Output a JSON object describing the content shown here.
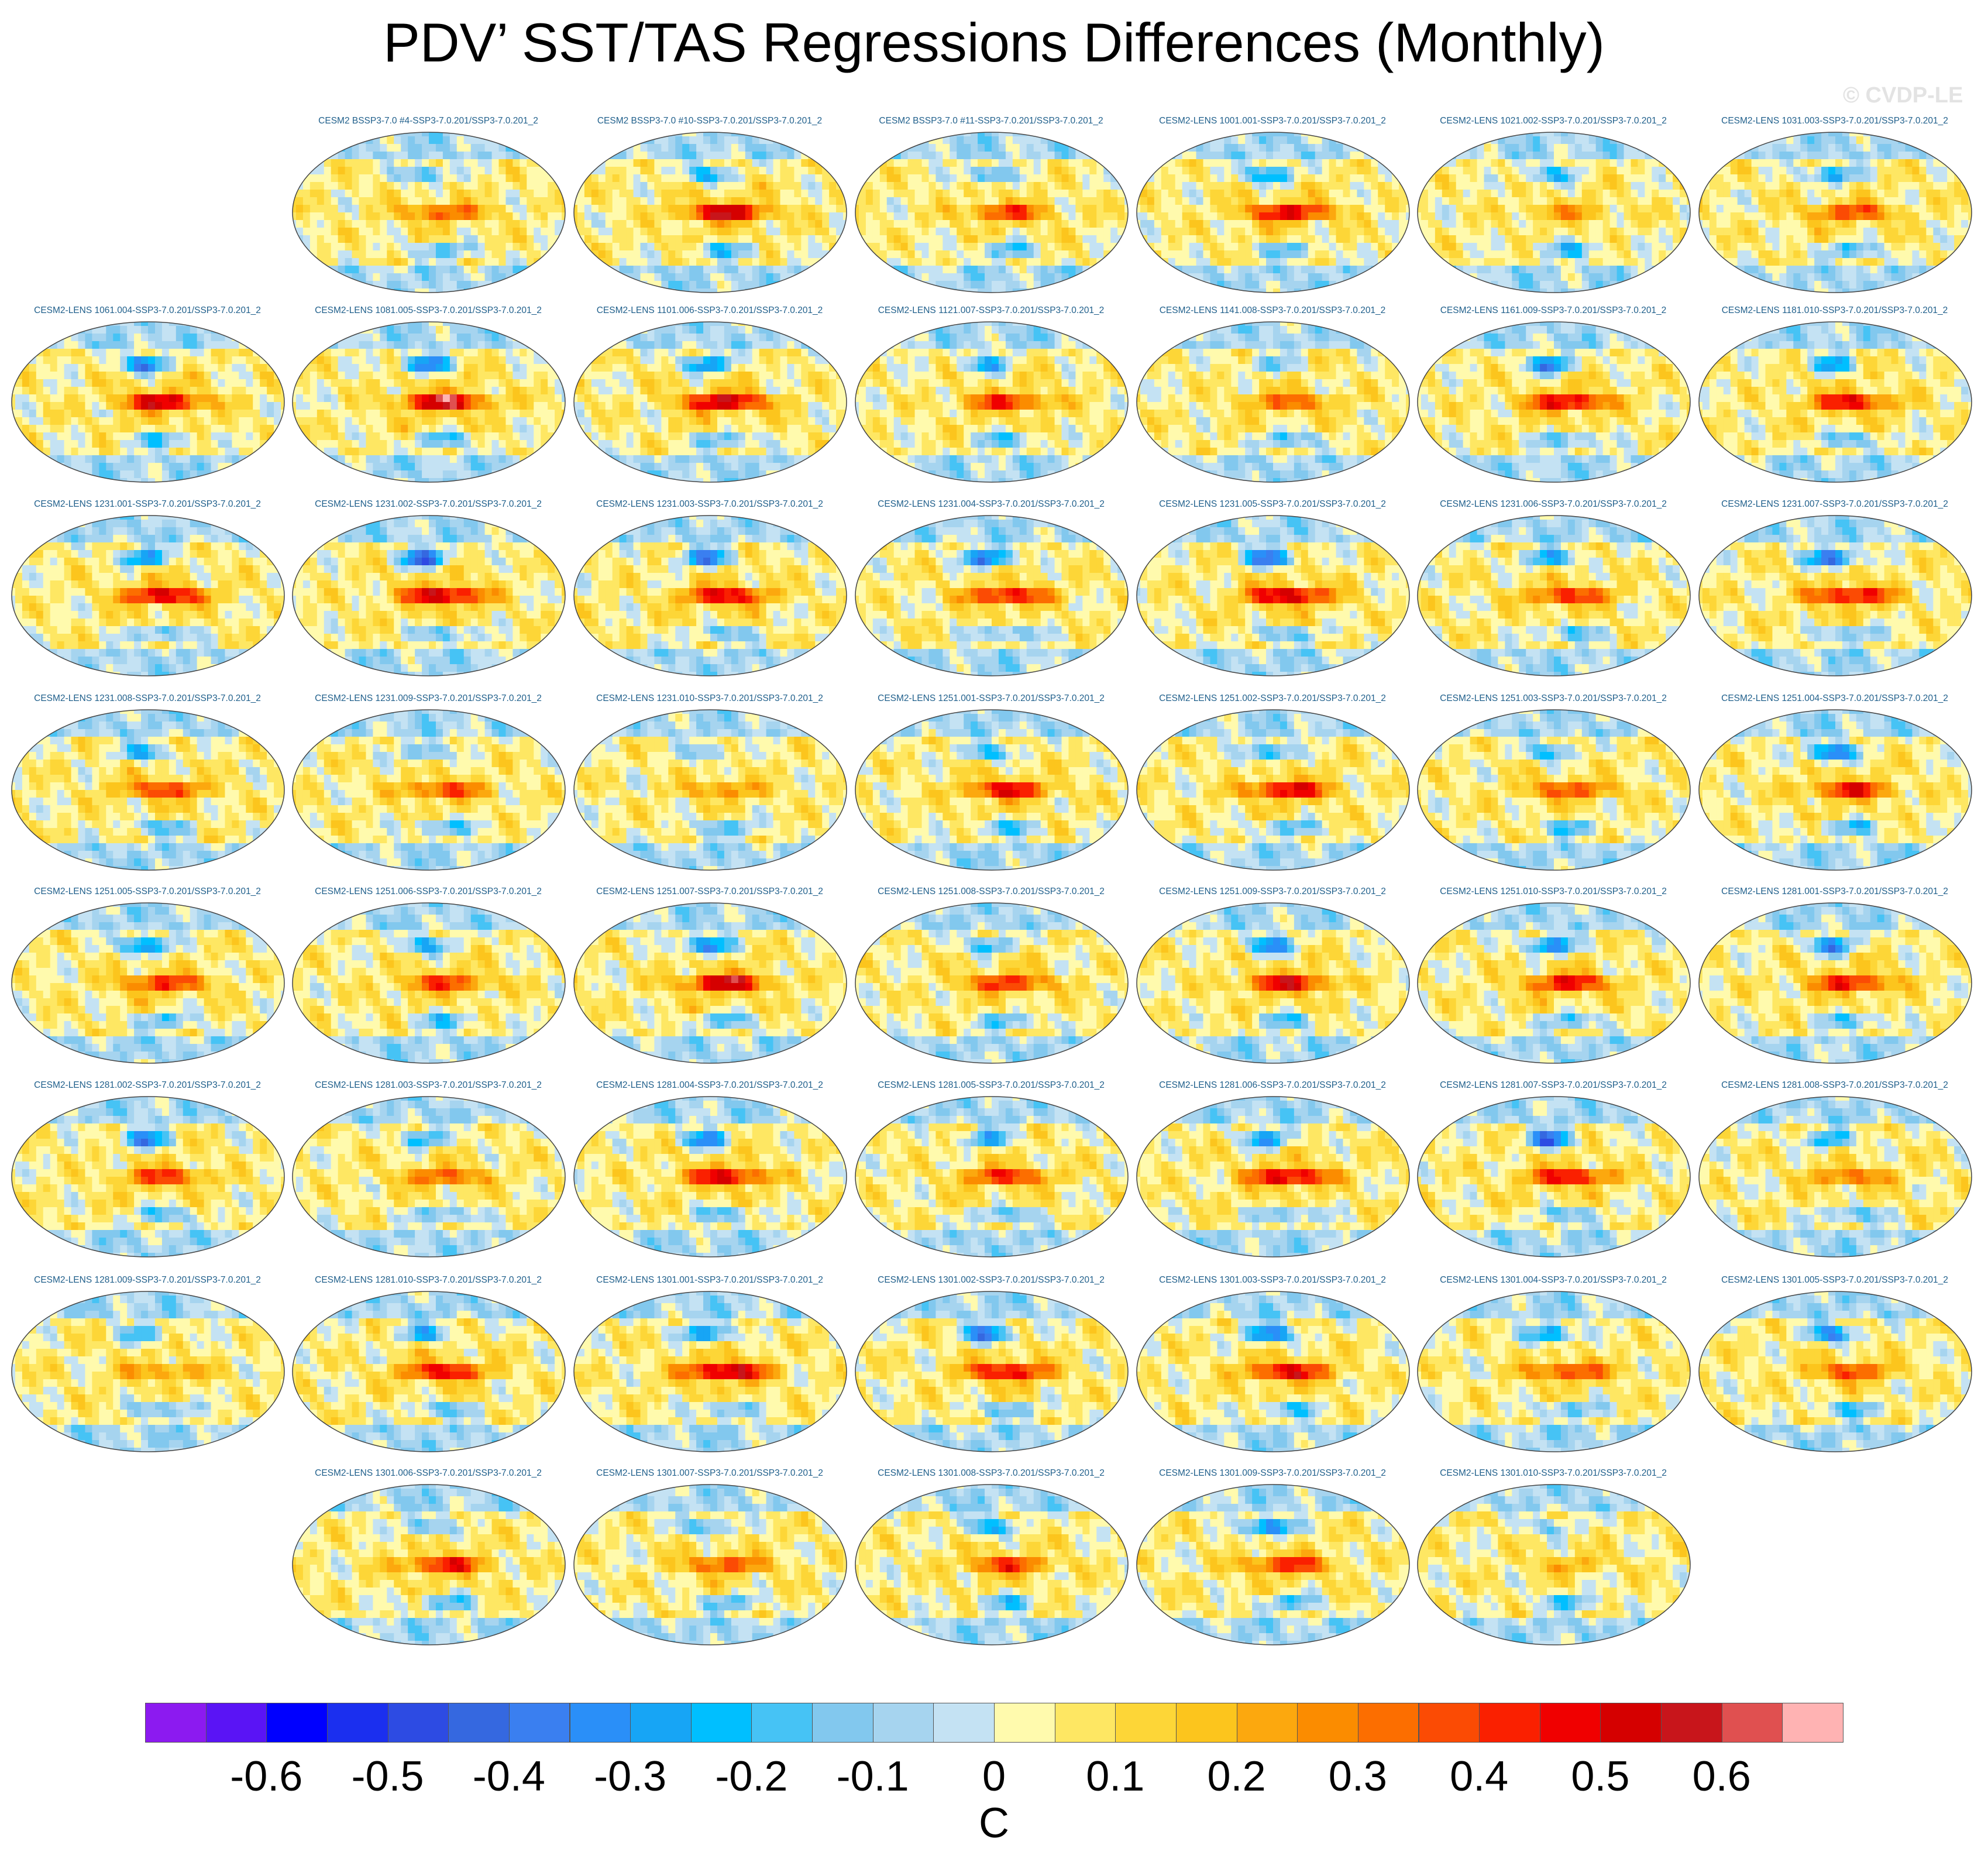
{
  "title": "PDV’ SST/TAS Regressions Differences (Monthly)",
  "watermark": "© CVDP-LE",
  "chart_data": {
    "type": "heatmap",
    "title": "PDV’ SST/TAS Regressions Differences (Monthly)",
    "projection": "global map (Robinson-like)",
    "units": "C",
    "colorbar": {
      "colors": [
        "#8c1af0",
        "#5a14f5",
        "#0000ff",
        "#1b2fef",
        "#2d4be3",
        "#3568e0",
        "#3a7ff0",
        "#2a8ff8",
        "#17a5f5",
        "#00bfff",
        "#46c3f5",
        "#82c8ee",
        "#a6d4ef",
        "#c4e2f3",
        "#fffaad",
        "#fee763",
        "#fdd637",
        "#fcc51d",
        "#fca80e",
        "#fb8c00",
        "#fc6e00",
        "#fb4b04",
        "#fa2000",
        "#f00000",
        "#d50000",
        "#c8151b",
        "#e05050",
        "#ffb3b3"
      ],
      "tick_labels": [
        "-0.6",
        "-0.5",
        "-0.4",
        "-0.3",
        "-0.2",
        "-0.1",
        "0",
        "0.1",
        "0.2",
        "0.3",
        "0.4",
        "0.5",
        "0.6"
      ]
    },
    "panels": [
      {
        "label": "CESM2 BSSP3-7.0 #4-SSP3-7.0.201/SSP3-7.0.201_2",
        "amp": 0.55,
        "north": 0.55,
        "seed": 1
      },
      {
        "label": "CESM2 BSSP3-7.0 #10-SSP3-7.0.201/SSP3-7.0.201_2",
        "amp": 0.95,
        "north": 0.6,
        "seed": 2
      },
      {
        "label": "CESM2 BSSP3-7.0 #11-SSP3-7.0.201/SSP3-7.0.201_2",
        "amp": 0.6,
        "north": 0.55,
        "seed": 3
      },
      {
        "label": "CESM2-LENS 1001.001-SSP3-7.0.201/SSP3-7.0.201_2",
        "amp": 0.85,
        "north": 0.7,
        "seed": 4
      },
      {
        "label": "CESM2-LENS 1021.002-SSP3-7.0.201/SSP3-7.0.201_2",
        "amp": 0.35,
        "north": 0.5,
        "seed": 5
      },
      {
        "label": "CESM2-LENS 1031.003-SSP3-7.0.201/SSP3-7.0.201_2",
        "amp": 0.6,
        "north": 0.65,
        "seed": 6
      },
      {
        "label": "CESM2-LENS 1061.004-SSP3-7.0.201/SSP3-7.0.201_2",
        "amp": 0.9,
        "north": 0.8,
        "seed": 7
      },
      {
        "label": "CESM2-LENS 1081.005-SSP3-7.0.201/SSP3-7.0.201_2",
        "amp": 1.0,
        "north": 0.85,
        "seed": 8
      },
      {
        "label": "CESM2-LENS 1101.006-SSP3-7.0.201/SSP3-7.0.201_2",
        "amp": 0.95,
        "north": 0.75,
        "seed": 9
      },
      {
        "label": "CESM2-LENS 1121.007-SSP3-7.0.201/SSP3-7.0.201_2",
        "amp": 0.7,
        "north": 0.55,
        "seed": 10
      },
      {
        "label": "CESM2-LENS 1141.008-SSP3-7.0.201/SSP3-7.0.201_2",
        "amp": 0.55,
        "north": 0.4,
        "seed": 11
      },
      {
        "label": "CESM2-LENS 1161.009-SSP3-7.0.201/SSP3-7.0.201_2",
        "amp": 0.85,
        "north": 0.8,
        "seed": 12
      },
      {
        "label": "CESM2-LENS 1181.010-SSP3-7.0.201/SSP3-7.0.201_2",
        "amp": 0.8,
        "north": 0.6,
        "seed": 13
      },
      {
        "label": "CESM2-LENS 1231.001-SSP3-7.0.201/SSP3-7.0.201_2",
        "amp": 0.9,
        "north": 0.75,
        "seed": 14
      },
      {
        "label": "CESM2-LENS 1231.002-SSP3-7.0.201/SSP3-7.0.201_2",
        "amp": 0.95,
        "north": 0.95,
        "seed": 15
      },
      {
        "label": "CESM2-LENS 1231.003-SSP3-7.0.201/SSP3-7.0.201_2",
        "amp": 0.85,
        "north": 0.85,
        "seed": 16
      },
      {
        "label": "CESM2-LENS 1231.004-SSP3-7.0.201/SSP3-7.0.201_2",
        "amp": 0.8,
        "north": 0.9,
        "seed": 17
      },
      {
        "label": "CESM2-LENS 1231.005-SSP3-7.0.201/SSP3-7.0.201_2",
        "amp": 0.95,
        "north": 0.9,
        "seed": 18
      },
      {
        "label": "CESM2-LENS 1231.006-SSP3-7.0.201/SSP3-7.0.201_2",
        "amp": 0.7,
        "north": 0.7,
        "seed": 19
      },
      {
        "label": "CESM2-LENS 1231.007-SSP3-7.0.201/SSP3-7.0.201_2",
        "amp": 0.85,
        "north": 0.95,
        "seed": 20
      },
      {
        "label": "CESM2-LENS 1231.008-SSP3-7.0.201/SSP3-7.0.201_2",
        "amp": 0.65,
        "north": 0.6,
        "seed": 21
      },
      {
        "label": "CESM2-LENS 1231.009-SSP3-7.0.201/SSP3-7.0.201_2",
        "amp": 0.6,
        "north": 0.5,
        "seed": 22
      },
      {
        "label": "CESM2-LENS 1231.010-SSP3-7.0.201/SSP3-7.0.201_2",
        "amp": 0.4,
        "north": 0.4,
        "seed": 23
      },
      {
        "label": "CESM2-LENS 1251.001-SSP3-7.0.201/SSP3-7.0.201_2",
        "amp": 0.8,
        "north": 0.55,
        "seed": 24
      },
      {
        "label": "CESM2-LENS 1251.002-SSP3-7.0.201/SSP3-7.0.201_2",
        "amp": 0.85,
        "north": 0.65,
        "seed": 25
      },
      {
        "label": "CESM2-LENS 1251.003-SSP3-7.0.201/SSP3-7.0.201_2",
        "amp": 0.6,
        "north": 0.55,
        "seed": 26
      },
      {
        "label": "CESM2-LENS 1251.004-SSP3-7.0.201/SSP3-7.0.201_2",
        "amp": 0.75,
        "north": 0.9,
        "seed": 27
      },
      {
        "label": "CESM2-LENS 1251.005-SSP3-7.0.201/SSP3-7.0.201_2",
        "amp": 0.7,
        "north": 0.8,
        "seed": 28
      },
      {
        "label": "CESM2-LENS 1251.006-SSP3-7.0.201/SSP3-7.0.201_2",
        "amp": 0.65,
        "north": 0.6,
        "seed": 29
      },
      {
        "label": "CESM2-LENS 1251.007-SSP3-7.0.201/SSP3-7.0.201_2",
        "amp": 0.95,
        "north": 0.85,
        "seed": 30
      },
      {
        "label": "CESM2-LENS 1251.008-SSP3-7.0.201/SSP3-7.0.201_2",
        "amp": 0.7,
        "north": 0.55,
        "seed": 31
      },
      {
        "label": "CESM2-LENS 1251.009-SSP3-7.0.201/SSP3-7.0.201_2",
        "amp": 0.85,
        "north": 0.75,
        "seed": 32
      },
      {
        "label": "CESM2-LENS 1251.010-SSP3-7.0.201/SSP3-7.0.201_2",
        "amp": 0.8,
        "north": 0.8,
        "seed": 33
      },
      {
        "label": "CESM2-LENS 1281.001-SSP3-7.0.201/SSP3-7.0.201_2",
        "amp": 0.75,
        "north": 0.75,
        "seed": 34
      },
      {
        "label": "CESM2-LENS 1281.002-SSP3-7.0.201/SSP3-7.0.201_2",
        "amp": 0.65,
        "north": 0.8,
        "seed": 35
      },
      {
        "label": "CESM2-LENS 1281.003-SSP3-7.0.201/SSP3-7.0.201_2",
        "amp": 0.55,
        "north": 0.55,
        "seed": 36
      },
      {
        "label": "CESM2-LENS 1281.004-SSP3-7.0.201/SSP3-7.0.201_2",
        "amp": 0.85,
        "north": 0.75,
        "seed": 37
      },
      {
        "label": "CESM2-LENS 1281.005-SSP3-7.0.201/SSP3-7.0.201_2",
        "amp": 0.7,
        "north": 0.6,
        "seed": 38
      },
      {
        "label": "CESM2-LENS 1281.006-SSP3-7.0.201/SSP3-7.0.201_2",
        "amp": 0.9,
        "north": 0.7,
        "seed": 39
      },
      {
        "label": "CESM2-LENS 1281.007-SSP3-7.0.201/SSP3-7.0.201_2",
        "amp": 0.8,
        "north": 0.9,
        "seed": 40
      },
      {
        "label": "CESM2-LENS 1281.008-SSP3-7.0.201/SSP3-7.0.201_2",
        "amp": 0.5,
        "north": 0.6,
        "seed": 41
      },
      {
        "label": "CESM2-LENS 1281.009-SSP3-7.0.201/SSP3-7.0.201_2",
        "amp": 0.4,
        "north": 0.5,
        "seed": 42
      },
      {
        "label": "CESM2-LENS 1281.010-SSP3-7.0.201/SSP3-7.0.201_2",
        "amp": 0.8,
        "north": 0.6,
        "seed": 43
      },
      {
        "label": "CESM2-LENS 1301.001-SSP3-7.0.201/SSP3-7.0.201_2",
        "amp": 1.0,
        "north": 0.75,
        "seed": 44
      },
      {
        "label": "CESM2-LENS 1301.002-SSP3-7.0.201/SSP3-7.0.201_2",
        "amp": 0.85,
        "north": 0.9,
        "seed": 45
      },
      {
        "label": "CESM2-LENS 1301.003-SSP3-7.0.201/SSP3-7.0.201_2",
        "amp": 0.85,
        "north": 0.9,
        "seed": 46
      },
      {
        "label": "CESM2-LENS 1301.004-SSP3-7.0.201/SSP3-7.0.201_2",
        "amp": 0.65,
        "north": 0.75,
        "seed": 47
      },
      {
        "label": "CESM2-LENS 1301.005-SSP3-7.0.201/SSP3-7.0.201_2",
        "amp": 0.6,
        "north": 0.75,
        "seed": 48
      },
      {
        "label": "CESM2-LENS 1301.006-SSP3-7.0.201/SSP3-7.0.201_2",
        "amp": 0.75,
        "north": 0.5,
        "seed": 49
      },
      {
        "label": "CESM2-LENS 1301.007-SSP3-7.0.201/SSP3-7.0.201_2",
        "amp": 0.6,
        "north": 0.55,
        "seed": 50
      },
      {
        "label": "CESM2-LENS 1301.008-SSP3-7.0.201/SSP3-7.0.201_2",
        "amp": 0.65,
        "north": 0.65,
        "seed": 51
      },
      {
        "label": "CESM2-LENS 1301.009-SSP3-7.0.201/SSP3-7.0.201_2",
        "amp": 0.7,
        "north": 0.9,
        "seed": 52
      },
      {
        "label": "CESM2-LENS 1301.010-SSP3-7.0.201/SSP3-7.0.201_2",
        "amp": 0.25,
        "north": 0.35,
        "seed": 53
      }
    ]
  }
}
